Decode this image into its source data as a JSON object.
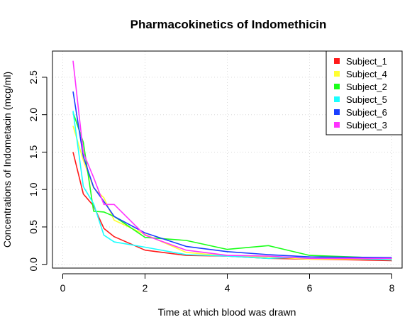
{
  "chart_data": {
    "type": "line",
    "title": "Pharmacokinetics of Indomethicin",
    "xlabel": "Time at which blood was drawn",
    "ylabel": "Concentrations of Indometacin (mcg/ml)",
    "xlim": [
      -0.25,
      8.25
    ],
    "ylim": [
      -0.05,
      2.85
    ],
    "xticks": [
      0,
      2,
      4,
      6,
      8
    ],
    "yticks": [
      0.0,
      0.5,
      1.0,
      1.5,
      2.0,
      2.5
    ],
    "ytick_labels": [
      "0.0",
      "0.5",
      "1.0",
      "1.5",
      "2.0",
      "2.5"
    ],
    "grid": true,
    "legend_position": "top-right",
    "x": [
      0.25,
      0.5,
      0.75,
      1,
      1.25,
      2,
      3,
      4,
      5,
      6,
      8
    ],
    "series": [
      {
        "name": "Subject_1",
        "color": "#ff1a1a",
        "values": [
          1.5,
          0.94,
          0.78,
          0.48,
          0.37,
          0.19,
          0.12,
          0.11,
          0.08,
          0.07,
          0.05
        ]
      },
      {
        "name": "Subject_4",
        "color": "#ffff33",
        "values": [
          1.85,
          1.39,
          1.02,
          0.89,
          0.59,
          0.4,
          0.16,
          0.11,
          0.1,
          0.07,
          0.07
        ]
      },
      {
        "name": "Subject_2",
        "color": "#1aff1a",
        "values": [
          2.03,
          1.63,
          0.71,
          0.7,
          0.64,
          0.36,
          0.32,
          0.2,
          0.25,
          0.12,
          0.08
        ]
      },
      {
        "name": "Subject_5",
        "color": "#1affff",
        "values": [
          2.05,
          1.04,
          0.81,
          0.39,
          0.3,
          0.23,
          0.13,
          0.11,
          0.08,
          0.1,
          0.06
        ]
      },
      {
        "name": "Subject_6",
        "color": "#1a3fff",
        "values": [
          2.31,
          1.44,
          1.03,
          0.84,
          0.64,
          0.42,
          0.24,
          0.17,
          0.13,
          0.1,
          0.09
        ]
      },
      {
        "name": "Subject_3",
        "color": "#ff33ff",
        "values": [
          2.72,
          1.49,
          1.16,
          0.8,
          0.8,
          0.39,
          0.19,
          0.12,
          0.11,
          0.08,
          0.08
        ]
      }
    ]
  }
}
